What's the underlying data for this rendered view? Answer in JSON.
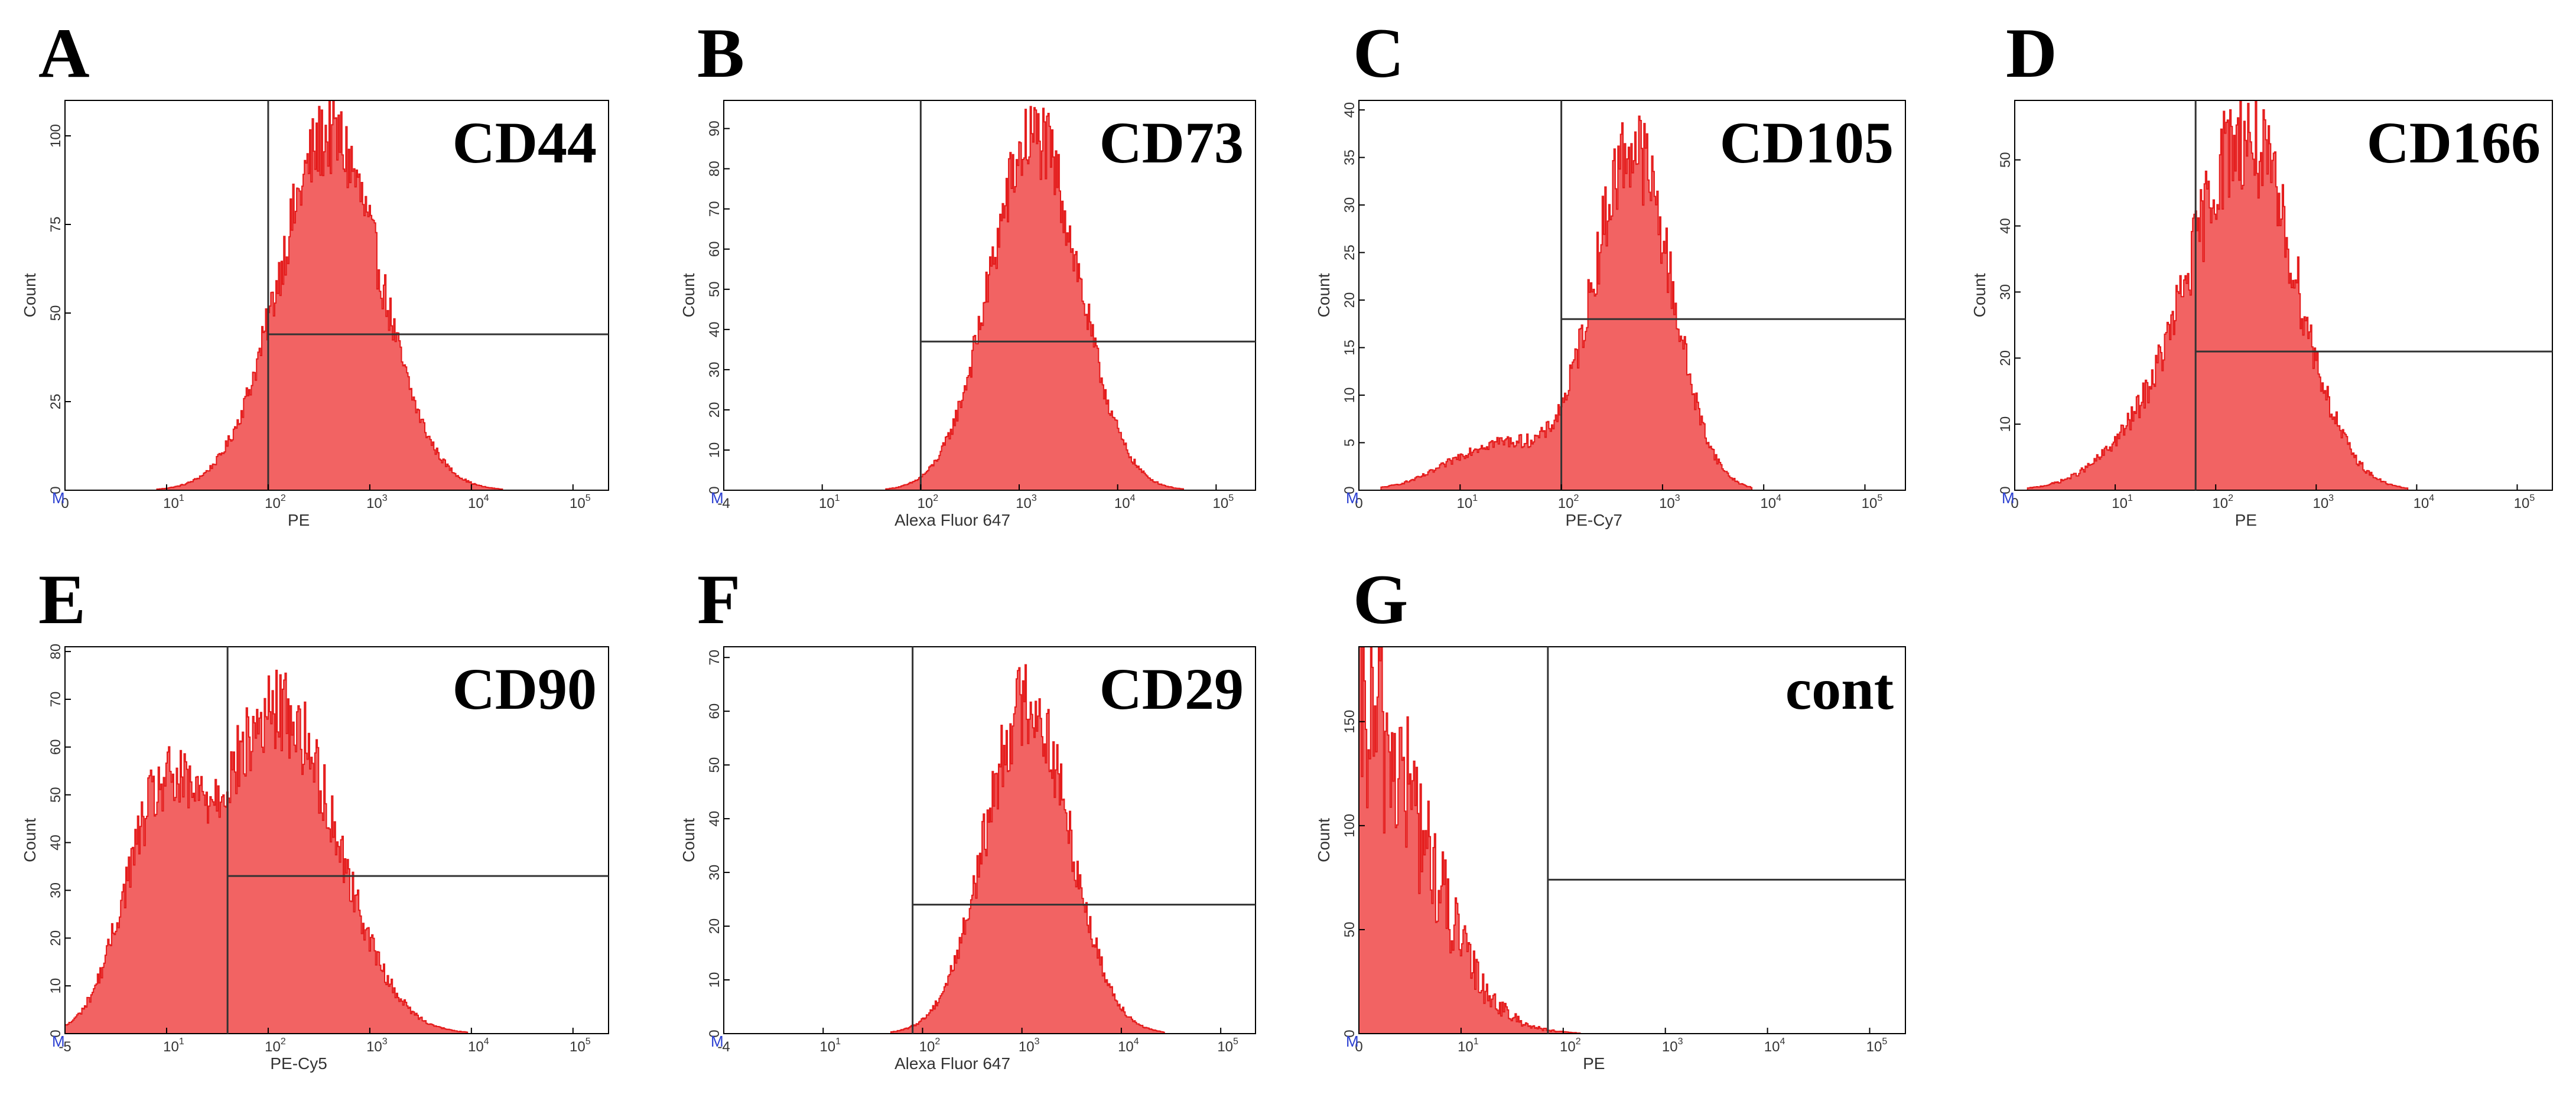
{
  "chart_data": [
    {
      "type": "histogram",
      "panel": "A",
      "marker": "CD44",
      "xlabel": "PE",
      "ylabel": "Count",
      "y_ticks": [
        0,
        25,
        50,
        75,
        100
      ],
      "ylim": [
        0,
        110
      ],
      "x_ticks": [
        {
          "base": "0",
          "exp": ""
        },
        {
          "base": "10",
          "exp": "1"
        },
        {
          "base": "10",
          "exp": "2"
        },
        {
          "base": "10",
          "exp": "3"
        },
        {
          "base": "10",
          "exp": "4"
        },
        {
          "base": "10",
          "exp": "5"
        }
      ],
      "x_tick_pos": [
        0,
        1,
        2,
        3,
        4,
        5
      ],
      "xlim": [
        0,
        5.35
      ],
      "gate_x": 2.0,
      "gate_y": 44,
      "peak": 2.6,
      "width": 0.5,
      "height": 100,
      "shoulder": 0,
      "tail": 0,
      "noise": 0.12,
      "marker_label": "M"
    },
    {
      "type": "histogram",
      "panel": "B",
      "marker": "CD73",
      "xlabel": "Alexa Fluor 647",
      "ylabel": "Count",
      "y_ticks": [
        0,
        10,
        20,
        30,
        40,
        50,
        60,
        70,
        80,
        90
      ],
      "ylim": [
        0,
        97
      ],
      "x_ticks": [
        {
          "base": "-4",
          "exp": ""
        },
        {
          "base": "10",
          "exp": "1"
        },
        {
          "base": "10",
          "exp": "2"
        },
        {
          "base": "10",
          "exp": "3"
        },
        {
          "base": "10",
          "exp": "4"
        },
        {
          "base": "10",
          "exp": "5"
        }
      ],
      "x_tick_pos": [
        0,
        1,
        2,
        3,
        4,
        5
      ],
      "xlim": [
        0,
        5.4
      ],
      "gate_x": 2.0,
      "gate_y": 37,
      "peak": 3.15,
      "width": 0.45,
      "height": 88,
      "shoulder": 0,
      "tail": 0,
      "noise": 0.12,
      "marker_label": "M"
    },
    {
      "type": "histogram",
      "panel": "C",
      "marker": "CD105",
      "xlabel": "PE-Cy7",
      "ylabel": "Count",
      "y_ticks": [
        0,
        5,
        10,
        15,
        20,
        25,
        30,
        35,
        40
      ],
      "ylim": [
        0,
        41
      ],
      "x_ticks": [
        {
          "base": "0",
          "exp": ""
        },
        {
          "base": "10",
          "exp": "1"
        },
        {
          "base": "10",
          "exp": "2"
        },
        {
          "base": "10",
          "exp": "3"
        },
        {
          "base": "10",
          "exp": "4"
        },
        {
          "base": "10",
          "exp": "5"
        }
      ],
      "x_tick_pos": [
        0,
        1,
        2,
        3,
        4,
        5
      ],
      "xlim": [
        0,
        5.4
      ],
      "gate_x": 2.0,
      "gate_y": 18,
      "peak": 2.7,
      "width": 0.38,
      "height": 36,
      "shoulder": 0,
      "tail": 5,
      "noise": 0.14,
      "marker_label": "M"
    },
    {
      "type": "histogram",
      "panel": "D",
      "marker": "CD166",
      "xlabel": "PE",
      "ylabel": "Count",
      "y_ticks": [
        0,
        10,
        20,
        30,
        40,
        50
      ],
      "ylim": [
        0,
        59
      ],
      "x_ticks": [
        {
          "base": "0",
          "exp": ""
        },
        {
          "base": "10",
          "exp": "1"
        },
        {
          "base": "10",
          "exp": "2"
        },
        {
          "base": "10",
          "exp": "3"
        },
        {
          "base": "10",
          "exp": "4"
        },
        {
          "base": "10",
          "exp": "5"
        }
      ],
      "x_tick_pos": [
        0,
        1,
        2,
        3,
        4,
        5
      ],
      "xlim": [
        0,
        5.35
      ],
      "gate_x": 1.8,
      "gate_y": 21,
      "peak": 2.3,
      "width": 0.5,
      "height": 52,
      "shoulder": 0,
      "tail": 8,
      "noise": 0.16,
      "marker_label": "M"
    },
    {
      "type": "histogram",
      "panel": "E",
      "marker": "CD90",
      "xlabel": "PE-Cy5",
      "ylabel": "Count",
      "y_ticks": [
        0,
        10,
        20,
        30,
        40,
        50,
        60,
        70,
        80
      ],
      "ylim": [
        0,
        81
      ],
      "x_ticks": [
        {
          "base": "-5",
          "exp": ""
        },
        {
          "base": "10",
          "exp": "1"
        },
        {
          "base": "10",
          "exp": "2"
        },
        {
          "base": "10",
          "exp": "3"
        },
        {
          "base": "10",
          "exp": "4"
        },
        {
          "base": "10",
          "exp": "5"
        }
      ],
      "x_tick_pos": [
        0,
        1,
        2,
        3,
        4,
        5
      ],
      "xlim": [
        0,
        5.35
      ],
      "gate_x": 1.6,
      "gate_y": 33,
      "peak": 2.15,
      "width": 0.55,
      "height": 64,
      "shoulder": 40,
      "tail": 10,
      "noise": 0.14,
      "marker_label": "M"
    },
    {
      "type": "histogram",
      "panel": "F",
      "marker": "CD29",
      "xlabel": "Alexa Fluor 647",
      "ylabel": "Count",
      "y_ticks": [
        0,
        10,
        20,
        30,
        40,
        50,
        60,
        70
      ],
      "ylim": [
        0,
        72
      ],
      "x_ticks": [
        {
          "base": "-4",
          "exp": ""
        },
        {
          "base": "10",
          "exp": "1"
        },
        {
          "base": "10",
          "exp": "2"
        },
        {
          "base": "10",
          "exp": "3"
        },
        {
          "base": "10",
          "exp": "4"
        },
        {
          "base": "10",
          "exp": "5"
        }
      ],
      "x_tick_pos": [
        0,
        1,
        2,
        3,
        4,
        5
      ],
      "xlim": [
        0,
        5.35
      ],
      "gate_x": 1.9,
      "gate_y": 24,
      "peak": 3.05,
      "width": 0.42,
      "height": 62,
      "shoulder": 0,
      "tail": 0,
      "noise": 0.14,
      "marker_label": "M"
    },
    {
      "type": "histogram",
      "panel": "G",
      "marker": "cont",
      "xlabel": "PE",
      "ylabel": "Count",
      "y_ticks": [
        0,
        50,
        100,
        150
      ],
      "ylim": [
        0,
        186
      ],
      "x_ticks": [
        {
          "base": "0",
          "exp": ""
        },
        {
          "base": "10",
          "exp": "1"
        },
        {
          "base": "10",
          "exp": "2"
        },
        {
          "base": "10",
          "exp": "3"
        },
        {
          "base": "10",
          "exp": "4"
        },
        {
          "base": "10",
          "exp": "5"
        }
      ],
      "x_tick_pos": [
        0,
        1,
        2,
        3,
        4,
        5
      ],
      "xlim": [
        0,
        5.35
      ],
      "gate_x": 1.85,
      "gate_y": 74,
      "peak": 0.05,
      "width": 0.6,
      "height": 150,
      "shoulder": 0,
      "tail": 0,
      "noise": 0.35,
      "marker_label": "M"
    }
  ],
  "colors": {
    "fill": "#f26363",
    "edge": "#e41a1a",
    "axis": "#000000",
    "marker_m": "#2b3fd1"
  }
}
